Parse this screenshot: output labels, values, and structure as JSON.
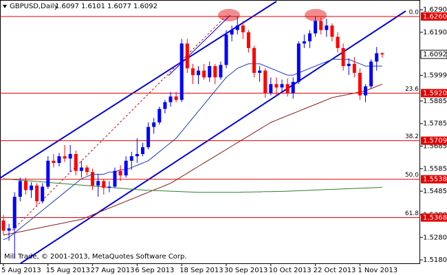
{
  "chart_data": {
    "type": "candlestick",
    "title": "GBPUSD,Daily",
    "watermark": "Mill Trade, © 2001-2013, MetaQuotes Software Corp.",
    "categories": [
      "5 Aug 2013",
      null,
      null,
      null,
      null,
      null,
      null,
      null,
      "15 Aug 2013",
      null,
      null,
      null,
      null,
      null,
      null,
      null,
      "27 Aug 2013",
      null,
      null,
      null,
      null,
      null,
      null,
      null,
      "6 Sep 2013",
      null,
      null,
      null,
      null,
      null,
      null,
      null,
      "18 Sep 2013",
      null,
      null,
      null,
      null,
      null,
      null,
      null,
      "30 Sep 2013",
      null,
      null,
      null,
      null,
      null,
      null,
      null,
      "10 Oct 2013",
      null,
      null,
      null,
      null,
      null,
      null,
      null,
      "22 Oct 2013",
      null,
      null,
      null,
      null,
      null,
      null,
      null,
      "1 Nov 2013",
      null,
      null,
      null,
      null
    ],
    "open": [
      1.5355,
      1.531,
      1.532,
      1.546,
      1.553,
      1.549,
      1.551,
      1.544,
      1.5505,
      1.562,
      1.561,
      1.564,
      1.563,
      1.565,
      1.5575,
      1.559,
      1.557,
      1.551,
      1.553,
      1.55,
      1.5505,
      1.5575,
      1.5555,
      1.562,
      1.564,
      1.565,
      1.568,
      1.577,
      1.579,
      1.585,
      1.588,
      1.5905,
      1.589,
      1.614,
      1.603,
      1.6,
      1.602,
      1.599,
      1.604,
      1.599,
      1.6045,
      1.618,
      1.62,
      1.622,
      1.619,
      1.612,
      1.601,
      1.602,
      1.592,
      1.596,
      1.5945,
      1.596,
      1.592,
      1.597,
      1.614,
      1.615,
      1.6185,
      1.624,
      1.62,
      1.622,
      1.617,
      1.612,
      1.604,
      1.605,
      1.601,
      1.591,
      1.595,
      1.606,
      1.6097
    ],
    "high": [
      1.538,
      1.534,
      1.548,
      1.5545,
      1.5545,
      1.5525,
      1.552,
      1.552,
      1.564,
      1.565,
      1.5655,
      1.569,
      1.569,
      1.5665,
      1.562,
      1.56,
      1.5585,
      1.556,
      1.554,
      1.553,
      1.559,
      1.56,
      1.564,
      1.566,
      1.572,
      1.57,
      1.579,
      1.581,
      1.586,
      1.589,
      1.5925,
      1.5925,
      1.616,
      1.616,
      1.605,
      1.604,
      1.605,
      1.606,
      1.605,
      1.606,
      1.62,
      1.622,
      1.6259,
      1.624,
      1.62,
      1.613,
      1.604,
      1.603,
      1.599,
      1.599,
      1.598,
      1.5985,
      1.599,
      1.615,
      1.618,
      1.62,
      1.626,
      1.6255,
      1.625,
      1.623,
      1.619,
      1.614,
      1.6075,
      1.608,
      1.603,
      1.596,
      1.607,
      1.6125,
      1.6101
    ],
    "low": [
      1.529,
      1.5265,
      1.5185,
      1.544,
      1.547,
      1.5455,
      1.542,
      1.543,
      1.5495,
      1.559,
      1.5595,
      1.5615,
      1.557,
      1.5555,
      1.5545,
      1.5555,
      1.549,
      1.546,
      1.547,
      1.548,
      1.55,
      1.553,
      1.5545,
      1.558,
      1.561,
      1.564,
      1.567,
      1.574,
      1.578,
      1.583,
      1.586,
      1.588,
      1.588,
      1.601,
      1.596,
      1.596,
      1.598,
      1.597,
      1.596,
      1.598,
      1.603,
      1.615,
      1.618,
      1.616,
      1.61,
      1.599,
      1.597,
      1.59,
      1.591,
      1.591,
      1.592,
      1.5905,
      1.5895,
      1.596,
      1.612,
      1.612,
      1.617,
      1.618,
      1.617,
      1.615,
      1.61,
      1.602,
      1.6,
      1.599,
      1.589,
      1.588,
      1.594,
      1.602,
      1.6077
    ],
    "close": [
      1.531,
      1.532,
      1.546,
      1.553,
      1.549,
      1.551,
      1.544,
      1.5505,
      1.562,
      1.561,
      1.564,
      1.563,
      1.565,
      1.5575,
      1.559,
      1.557,
      1.551,
      1.553,
      1.55,
      1.5505,
      1.5575,
      1.5555,
      1.562,
      1.564,
      1.565,
      1.568,
      1.577,
      1.579,
      1.585,
      1.588,
      1.5905,
      1.589,
      1.614,
      1.603,
      1.6,
      1.602,
      1.599,
      1.604,
      1.599,
      1.6045,
      1.618,
      1.62,
      1.622,
      1.619,
      1.612,
      1.601,
      1.602,
      1.592,
      1.596,
      1.5945,
      1.596,
      1.592,
      1.597,
      1.614,
      1.615,
      1.6185,
      1.624,
      1.62,
      1.622,
      1.617,
      1.612,
      1.604,
      1.605,
      1.601,
      1.591,
      1.595,
      1.606,
      1.6097,
      1.6092
    ],
    "up_color": "#0000ff",
    "down_color": "#ff0000",
    "overlays": [
      {
        "color": "#1f3fbf",
        "values": [
          1.527,
          1.528,
          1.53,
          1.532,
          1.534,
          1.536,
          1.538,
          1.54,
          1.542,
          1.544,
          1.546,
          1.548,
          1.55,
          1.552,
          1.554,
          1.555,
          1.556,
          1.556,
          1.556,
          1.557,
          1.557,
          1.558,
          1.558,
          1.559,
          1.56,
          1.561,
          1.562,
          1.564,
          1.566,
          1.568,
          1.57,
          1.572,
          1.575,
          1.578,
          1.581,
          1.584,
          1.587,
          1.59,
          1.593,
          1.596,
          1.599,
          1.601,
          1.603,
          1.604,
          1.605,
          1.605,
          1.605,
          1.604,
          1.603,
          1.602,
          1.601,
          1.6,
          1.6,
          1.601,
          1.602,
          1.603,
          1.604,
          1.605,
          1.606,
          1.607,
          1.607,
          1.607,
          1.607,
          1.606,
          1.605,
          1.604,
          1.604,
          1.604,
          1.604
        ]
      },
      {
        "color": "#8b1a1a",
        "values": [
          1.529,
          1.5295,
          1.53,
          1.5305,
          1.531,
          1.5315,
          1.532,
          1.5325,
          1.533,
          1.5335,
          1.534,
          1.5345,
          1.535,
          1.5355,
          1.536,
          1.537,
          1.538,
          1.539,
          1.54,
          1.541,
          1.542,
          1.543,
          1.544,
          1.545,
          1.546,
          1.547,
          1.548,
          1.549,
          1.55,
          1.551,
          1.552,
          1.5535,
          1.555,
          1.5565,
          1.558,
          1.5595,
          1.561,
          1.5625,
          1.564,
          1.5655,
          1.567,
          1.5685,
          1.57,
          1.5715,
          1.573,
          1.5745,
          1.576,
          1.5775,
          1.579,
          1.58,
          1.581,
          1.582,
          1.583,
          1.584,
          1.585,
          1.586,
          1.587,
          1.588,
          1.589,
          1.59,
          1.5905,
          1.591,
          1.5915,
          1.592,
          1.5925,
          1.593,
          1.594,
          1.595,
          1.596
        ]
      },
      {
        "color": "#2e7d32",
        "values": [
          1.554,
          1.5538,
          1.5536,
          1.5534,
          1.5532,
          1.553,
          1.5528,
          1.5526,
          1.5524,
          1.5522,
          1.552,
          1.5518,
          1.5516,
          1.5514,
          1.5512,
          1.551,
          1.5508,
          1.5506,
          1.5504,
          1.5502,
          1.55,
          1.5498,
          1.5496,
          1.5494,
          1.5492,
          1.549,
          1.5489,
          1.5488,
          1.5487,
          1.5486,
          1.5485,
          1.5484,
          1.5483,
          1.5482,
          1.5481,
          1.548,
          1.548,
          1.548,
          1.548,
          1.548,
          1.548,
          1.548,
          1.548,
          1.5481,
          1.5481,
          1.5482,
          1.5482,
          1.5483,
          1.5483,
          1.5484,
          1.5484,
          1.5485,
          1.5486,
          1.5487,
          1.5488,
          1.5489,
          1.549,
          1.5491,
          1.5492,
          1.5493,
          1.5494,
          1.5495,
          1.5496,
          1.5497,
          1.5498,
          1.5499,
          1.55,
          1.5501,
          1.5502
        ]
      }
    ],
    "levels": [
      {
        "ratio": "0.0",
        "value": 1.626,
        "label": "1.6260"
      },
      {
        "ratio": "23.6",
        "value": 1.592,
        "label": "1.5920"
      },
      {
        "ratio": "38.2",
        "value": 1.5709,
        "label": "1.5709"
      },
      {
        "ratio": "50.0",
        "value": 1.5538,
        "label": "1.5538"
      },
      {
        "ratio": "61.8",
        "value": 1.5368,
        "label": "1.5368"
      }
    ],
    "level_color": "#e00000",
    "ylim": [
      1.5165,
      1.6324
    ],
    "yticks": [
      {
        "value": 1.629,
        "label": "1.6290"
      },
      {
        "value": 1.619,
        "label": "1.6190"
      },
      1.5999,
      1.5885,
      1.5785,
      1.5685,
      1.5585,
      1.5485,
      {
        "value": 1.538,
        "label": "1.5380"
      },
      {
        "value": 1.528,
        "label": "1.5280"
      },
      {
        "value": 1.518,
        "label": "1.5180"
      }
    ]
  }
}
